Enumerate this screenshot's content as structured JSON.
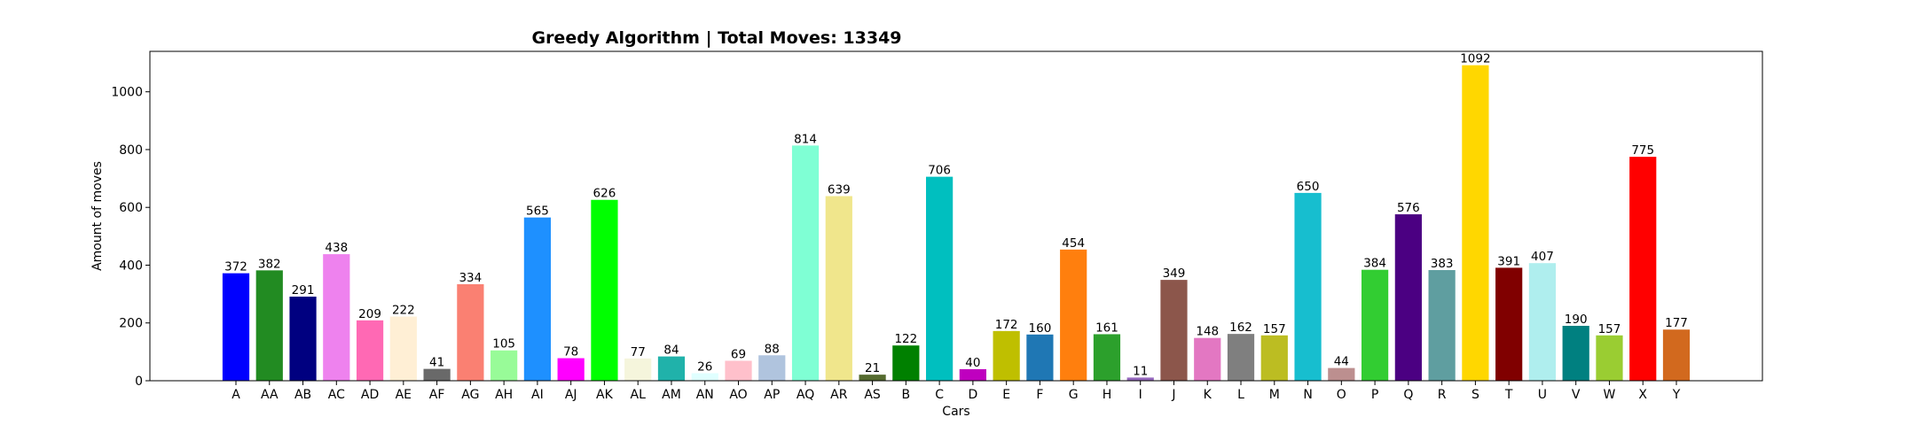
{
  "chart_data": {
    "type": "bar",
    "title": "Greedy Algorithm | Total Moves: 13349",
    "xlabel": "Cars",
    "ylabel": "Amount of moves",
    "ylim": [
      0,
      1140
    ],
    "yticks": [
      0,
      200,
      400,
      600,
      800,
      1000
    ],
    "grid": false,
    "legend": "none",
    "categories": [
      "A",
      "AA",
      "AB",
      "AC",
      "AD",
      "AE",
      "AF",
      "AG",
      "AH",
      "AI",
      "AJ",
      "AK",
      "AL",
      "AM",
      "AN",
      "AO",
      "AP",
      "AQ",
      "AR",
      "AS",
      "B",
      "C",
      "D",
      "E",
      "F",
      "G",
      "H",
      "I",
      "J",
      "K",
      "L",
      "M",
      "N",
      "O",
      "P",
      "Q",
      "R",
      "S",
      "T",
      "U",
      "V",
      "W",
      "X",
      "Y"
    ],
    "values": [
      372,
      382,
      291,
      438,
      209,
      222,
      41,
      334,
      105,
      565,
      78,
      626,
      77,
      84,
      26,
      69,
      88,
      814,
      639,
      21,
      122,
      706,
      40,
      172,
      160,
      454,
      161,
      11,
      349,
      148,
      162,
      157,
      650,
      44,
      384,
      576,
      383,
      1092,
      391,
      407,
      190,
      157,
      775,
      177
    ],
    "colors": [
      "#0000ff",
      "#228b22",
      "#000080",
      "#ee82ee",
      "#ff69b4",
      "#ffefd5",
      "#696969",
      "#fa8072",
      "#98fb98",
      "#1e90ff",
      "#ff00ff",
      "#00ff00",
      "#f5f5dc",
      "#20b2aa",
      "#e0ffff",
      "#ffc0cb",
      "#b0c4de",
      "#7fffd4",
      "#f0e68c",
      "#556b2f",
      "#008000",
      "#00bfbf",
      "#bf00bf",
      "#bfbf00",
      "#1f77b4",
      "#ff7f0e",
      "#2ca02c",
      "#9467bd",
      "#8c564b",
      "#e377c2",
      "#7f7f7f",
      "#bcbd22",
      "#17becf",
      "#bc8f8f",
      "#32cd32",
      "#4b0082",
      "#5f9ea0",
      "#ffd700",
      "#800000",
      "#afeeee",
      "#008080",
      "#9acd32",
      "#ff0000",
      "#d2691e"
    ]
  }
}
